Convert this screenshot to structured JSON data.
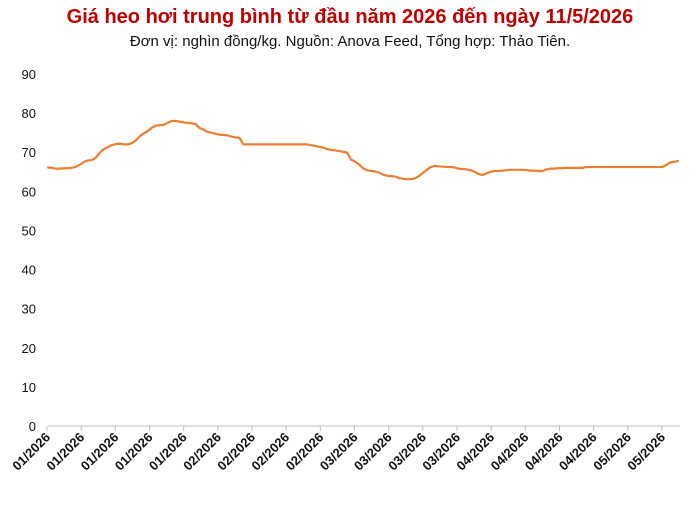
{
  "title": "Giá heo hơi trung bình từ đầu năm 2026 đến ngày 11/5/2026",
  "subtitle": "Đơn vị: nghìn đồng/kg. Nguồn: Anova Feed, Tổng hợp: Thảo Tiên.",
  "colors": {
    "line": "#ed7d31",
    "title": "#c00000",
    "axis": "#595959"
  },
  "chart_data": {
    "type": "line",
    "title": "Giá heo hơi trung bình từ đầu năm 2026 đến ngày 11/5/2026",
    "subtitle": "Đơn vị: nghìn đồng/kg. Nguồn: Anova Feed, Tổng hợp: Thảo Tiên.",
    "xlabel": "",
    "ylabel": "",
    "ylim": [
      0,
      90
    ],
    "yticks": [
      0,
      10,
      20,
      30,
      40,
      50,
      60,
      70,
      80,
      90
    ],
    "grid": false,
    "xtick_labels": [
      "01/2026",
      "01/2026",
      "01/2026",
      "01/2026",
      "01/2026",
      "02/2026",
      "02/2026",
      "02/2026",
      "02/2026",
      "03/2026",
      "03/2026",
      "03/2026",
      "03/2026",
      "04/2026",
      "04/2026",
      "04/2026",
      "04/2026",
      "05/2026",
      "05/2026"
    ],
    "series": [
      {
        "values": [
          66.1,
          66.0,
          65.8,
          65.8,
          65.9,
          65.9,
          66.0,
          66.3,
          66.8,
          67.5,
          67.9,
          68.0,
          68.6,
          69.9,
          70.8,
          71.3,
          71.8,
          72.1,
          72.2,
          72.0,
          72.0,
          72.3,
          73.0,
          74.1,
          74.8,
          75.4,
          76.2,
          76.8,
          76.9,
          77.0,
          77.5,
          78.0,
          78.0,
          77.8,
          77.6,
          77.5,
          77.4,
          77.2,
          76.2,
          75.8,
          75.2,
          75.0,
          74.7,
          74.5,
          74.4,
          74.3,
          74.0,
          73.8,
          73.7,
          72.0,
          72.0,
          72.0,
          72.0,
          72.0,
          72.0,
          72.0,
          72.0,
          72.0,
          72.0,
          72.0,
          72.0,
          72.0,
          72.0,
          72.0,
          72.0,
          72.0,
          71.8,
          71.6,
          71.4,
          71.2,
          70.8,
          70.6,
          70.5,
          70.3,
          70.1,
          69.9,
          68.1,
          67.6,
          66.9,
          65.9,
          65.4,
          65.2,
          65.1,
          64.8,
          64.3,
          64.0,
          63.9,
          63.8,
          63.4,
          63.2,
          63.1,
          63.1,
          63.3,
          63.9,
          64.7,
          65.5,
          66.2,
          66.5,
          66.4,
          66.3,
          66.2,
          66.2,
          66.1,
          65.8,
          65.7,
          65.6,
          65.4,
          65.0,
          64.4,
          64.2,
          64.6,
          65.0,
          65.2,
          65.2,
          65.3,
          65.4,
          65.5,
          65.5,
          65.5,
          65.5,
          65.4,
          65.3,
          65.3,
          65.2,
          65.2,
          65.6,
          65.8,
          65.8,
          65.9,
          65.9,
          66.0,
          66.0,
          66.0,
          66.0,
          66.0,
          66.2,
          66.2,
          66.2,
          66.2,
          66.2,
          66.2,
          66.2,
          66.2,
          66.2,
          66.2,
          66.2,
          66.2,
          66.2,
          66.2,
          66.2,
          66.2,
          66.2,
          66.2,
          66.2,
          66.2,
          66.7,
          67.4,
          67.5,
          67.8
        ]
      }
    ]
  }
}
